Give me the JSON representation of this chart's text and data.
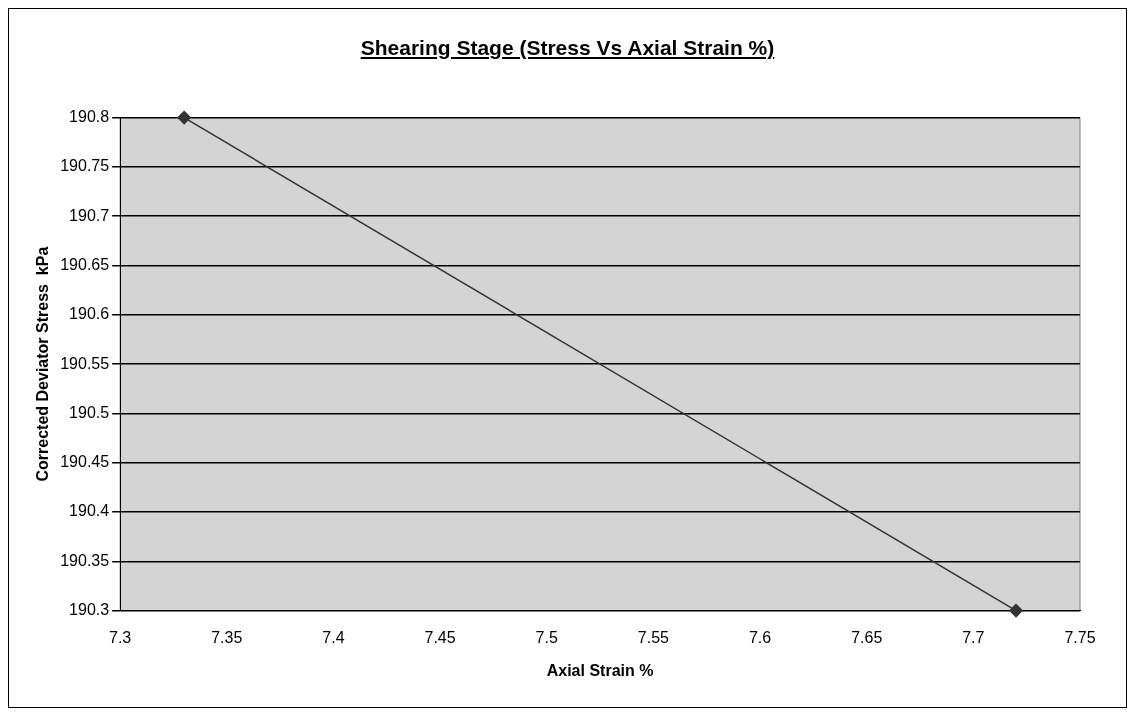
{
  "chart_data": {
    "type": "line",
    "title": "Shearing Stage (Stress Vs Axial Strain %)",
    "xlabel": "Axial Strain %",
    "ylabel": "Corrected Deviator Stress  kPa",
    "x": [
      7.33,
      7.72
    ],
    "series": [
      {
        "color": "#333333",
        "values": [
          190.8,
          190.3
        ]
      }
    ],
    "xlim": [
      7.3,
      7.75
    ],
    "xticks": [
      7.3,
      7.35,
      7.4,
      7.45,
      7.5,
      7.55,
      7.6,
      7.65,
      7.7,
      7.75
    ],
    "ylim": [
      190.3,
      190.8
    ],
    "yticks": [
      190.3,
      190.35,
      190.4,
      190.45,
      190.5,
      190.55,
      190.6,
      190.65,
      190.7,
      190.75,
      190.8
    ],
    "grid": "y",
    "legend": false,
    "marker": "diamond",
    "line_style": "solid"
  }
}
